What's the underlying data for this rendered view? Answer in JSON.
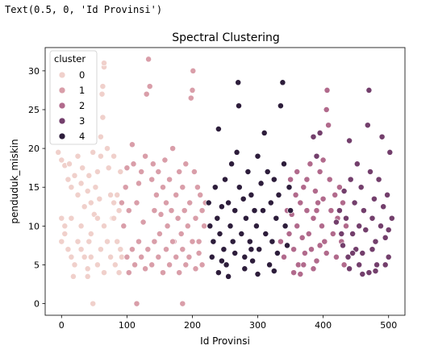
{
  "output_text": "Text(0.5, 0, 'Id Provinsi')",
  "chart_data": {
    "type": "scatter",
    "title": "Spectral Clustering",
    "xlabel": "Id Provinsi",
    "ylabel": "penduduk_miskin",
    "xlim": [
      -25,
      525
    ],
    "ylim": [
      -1.5,
      33
    ],
    "xticks": [
      0,
      100,
      200,
      300,
      400,
      500
    ],
    "yticks": [
      0,
      5,
      10,
      15,
      20,
      25,
      30
    ],
    "grid": false,
    "legend": {
      "title": "cluster",
      "position": "top-left",
      "entries": [
        {
          "name": "0",
          "color": "#f0d0cb"
        },
        {
          "name": "1",
          "color": "#d99ea9"
        },
        {
          "name": "2",
          "color": "#b16a8c"
        },
        {
          "name": "3",
          "color": "#733f6c"
        },
        {
          "name": "4",
          "color": "#2d1d3b"
        }
      ]
    },
    "series": [
      {
        "name": "0",
        "color": "#f0d0cb",
        "points": [
          [
            -5,
            19.5
          ],
          [
            0,
            18.5
          ],
          [
            5,
            17.8
          ],
          [
            10,
            16
          ],
          [
            12,
            18
          ],
          [
            15,
            15
          ],
          [
            20,
            16.5
          ],
          [
            25,
            19
          ],
          [
            25,
            14
          ],
          [
            30,
            15.5
          ],
          [
            32,
            17.5
          ],
          [
            35,
            12.5
          ],
          [
            40,
            14.5
          ],
          [
            42,
            16.5
          ],
          [
            45,
            13
          ],
          [
            48,
            19.5
          ],
          [
            50,
            11.5
          ],
          [
            52,
            15
          ],
          [
            55,
            17
          ],
          [
            58,
            13.5
          ],
          [
            60,
            21.5
          ],
          [
            60,
            19
          ],
          [
            62,
            27
          ],
          [
            63,
            28
          ],
          [
            63,
            24
          ],
          [
            65,
            30.5
          ],
          [
            65,
            31
          ],
          [
            70,
            20
          ],
          [
            72,
            17.5
          ],
          [
            75,
            14
          ],
          [
            78,
            11
          ],
          [
            80,
            13
          ],
          [
            80,
            19
          ],
          [
            85,
            14
          ],
          [
            88,
            12
          ],
          [
            90,
            17
          ],
          [
            0,
            11
          ],
          [
            5,
            10
          ],
          [
            15,
            11
          ],
          [
            30,
            10
          ],
          [
            45,
            9
          ],
          [
            55,
            11
          ],
          [
            65,
            10
          ],
          [
            80,
            11
          ],
          [
            0,
            8
          ],
          [
            5,
            9
          ],
          [
            10,
            7
          ],
          [
            15,
            6
          ],
          [
            20,
            5
          ],
          [
            25,
            8
          ],
          [
            30,
            7
          ],
          [
            35,
            6
          ],
          [
            40,
            4.5
          ],
          [
            42,
            8
          ],
          [
            45,
            6
          ],
          [
            55,
            5
          ],
          [
            60,
            7
          ],
          [
            65,
            4
          ],
          [
            70,
            8
          ],
          [
            75,
            6
          ],
          [
            82,
            5
          ],
          [
            85,
            8
          ],
          [
            88,
            4
          ],
          [
            90,
            7
          ],
          [
            92,
            6
          ],
          [
            18,
            3.5
          ],
          [
            40,
            3.5
          ],
          [
            48,
            0
          ]
        ]
      },
      {
        "name": "1",
        "color": "#d99ea9",
        "points": [
          [
            92,
            13
          ],
          [
            95,
            10
          ],
          [
            98,
            15
          ],
          [
            100,
            17.5
          ],
          [
            103,
            12
          ],
          [
            108,
            20.5
          ],
          [
            110,
            18
          ],
          [
            115,
            13
          ],
          [
            118,
            15.5
          ],
          [
            122,
            17
          ],
          [
            125,
            10.5
          ],
          [
            128,
            19
          ],
          [
            130,
            27
          ],
          [
            133,
            31.5
          ],
          [
            135,
            28
          ],
          [
            138,
            16
          ],
          [
            140,
            18
          ],
          [
            142,
            12
          ],
          [
            145,
            14
          ],
          [
            148,
            17
          ],
          [
            150,
            9
          ],
          [
            152,
            11.5
          ],
          [
            155,
            15
          ],
          [
            158,
            18.5
          ],
          [
            160,
            13
          ],
          [
            162,
            10
          ],
          [
            165,
            16
          ],
          [
            168,
            12
          ],
          [
            170,
            20
          ],
          [
            172,
            8
          ],
          [
            175,
            14
          ],
          [
            178,
            11
          ],
          [
            180,
            17
          ],
          [
            183,
            9
          ],
          [
            185,
            15
          ],
          [
            188,
            12
          ],
          [
            190,
            18
          ],
          [
            193,
            10
          ],
          [
            196,
            13
          ],
          [
            198,
            26.5
          ],
          [
            200,
            27.5
          ],
          [
            201,
            30
          ],
          [
            203,
            17
          ],
          [
            205,
            11
          ],
          [
            208,
            15
          ],
          [
            210,
            8
          ],
          [
            212,
            14
          ],
          [
            215,
            12
          ],
          [
            218,
            10
          ],
          [
            220,
            13
          ],
          [
            100,
            6
          ],
          [
            103,
            4
          ],
          [
            108,
            7
          ],
          [
            112,
            5
          ],
          [
            118,
            8
          ],
          [
            122,
            6
          ],
          [
            128,
            4.5
          ],
          [
            132,
            7
          ],
          [
            138,
            5
          ],
          [
            142,
            8
          ],
          [
            148,
            6
          ],
          [
            155,
            4
          ],
          [
            160,
            7
          ],
          [
            165,
            5
          ],
          [
            170,
            8
          ],
          [
            175,
            6
          ],
          [
            180,
            4
          ],
          [
            185,
            7
          ],
          [
            190,
            5
          ],
          [
            195,
            6
          ],
          [
            200,
            8
          ],
          [
            205,
            4.5
          ],
          [
            210,
            6.5
          ],
          [
            215,
            5
          ],
          [
            115,
            0
          ],
          [
            185,
            0
          ]
        ]
      },
      {
        "name": "2",
        "color": "#b16a8c",
        "points": [
          [
            335,
            8
          ],
          [
            340,
            6
          ],
          [
            345,
            12
          ],
          [
            348,
            9
          ],
          [
            350,
            16
          ],
          [
            352,
            11.5
          ],
          [
            355,
            7
          ],
          [
            358,
            14
          ],
          [
            360,
            10
          ],
          [
            362,
            5
          ],
          [
            365,
            13
          ],
          [
            368,
            8.5
          ],
          [
            370,
            15
          ],
          [
            372,
            6.5
          ],
          [
            375,
            12
          ],
          [
            378,
            9
          ],
          [
            380,
            18
          ],
          [
            382,
            7
          ],
          [
            385,
            11
          ],
          [
            388,
            14.5
          ],
          [
            390,
            5.5
          ],
          [
            392,
            13
          ],
          [
            395,
            17
          ],
          [
            398,
            10
          ],
          [
            400,
            18.5
          ],
          [
            402,
            8
          ],
          [
            405,
            25
          ],
          [
            406,
            27.5
          ],
          [
            408,
            23
          ],
          [
            410,
            16
          ],
          [
            412,
            12
          ],
          [
            415,
            9
          ],
          [
            418,
            14
          ],
          [
            420,
            6
          ],
          [
            422,
            11
          ],
          [
            425,
            15
          ],
          [
            428,
            8
          ],
          [
            430,
            13
          ],
          [
            432,
            5
          ],
          [
            435,
            10
          ],
          [
            355,
            4
          ],
          [
            365,
            3.8
          ],
          [
            370,
            5
          ],
          [
            385,
            4.5
          ],
          [
            395,
            7.5
          ],
          [
            360,
            17
          ],
          [
            375,
            16
          ],
          [
            390,
            12
          ],
          [
            405,
            6.5
          ],
          [
            400,
            13.5
          ]
        ]
      },
      {
        "name": "3",
        "color": "#733f6c",
        "points": [
          [
            385,
            21.5
          ],
          [
            390,
            19
          ],
          [
            395,
            22
          ],
          [
            420,
            10.5
          ],
          [
            425,
            12
          ],
          [
            428,
            9
          ],
          [
            430,
            7.5
          ],
          [
            432,
            14.5
          ],
          [
            435,
            11
          ],
          [
            438,
            6
          ],
          [
            440,
            21
          ],
          [
            442,
            16
          ],
          [
            445,
            9
          ],
          [
            448,
            13
          ],
          [
            450,
            7
          ],
          [
            452,
            18
          ],
          [
            455,
            10
          ],
          [
            458,
            15
          ],
          [
            460,
            6.5
          ],
          [
            462,
            12
          ],
          [
            465,
            9.5
          ],
          [
            468,
            23
          ],
          [
            470,
            27.5
          ],
          [
            472,
            17
          ],
          [
            475,
            11
          ],
          [
            478,
            13.5
          ],
          [
            480,
            8
          ],
          [
            482,
            5
          ],
          [
            485,
            16
          ],
          [
            488,
            10
          ],
          [
            490,
            21.5
          ],
          [
            492,
            12.5
          ],
          [
            495,
            8.5
          ],
          [
            498,
            14
          ],
          [
            500,
            6
          ],
          [
            502,
            19.5
          ],
          [
            505,
            11
          ],
          [
            470,
            4
          ],
          [
            455,
            5
          ],
          [
            440,
            4.5
          ],
          [
            460,
            3.8
          ],
          [
            480,
            4.2
          ],
          [
            495,
            5
          ],
          [
            445,
            6.5
          ],
          [
            475,
            7
          ],
          [
            500,
            9.5
          ]
        ]
      },
      {
        "name": "4",
        "color": "#2d1d3b",
        "points": [
          [
            225,
            13
          ],
          [
            227,
            10
          ],
          [
            230,
            6
          ],
          [
            232,
            8
          ],
          [
            235,
            15
          ],
          [
            238,
            11
          ],
          [
            240,
            22.5
          ],
          [
            242,
            9
          ],
          [
            245,
            12.5
          ],
          [
            248,
            7
          ],
          [
            250,
            16
          ],
          [
            252,
            5
          ],
          [
            255,
            13
          ],
          [
            258,
            10
          ],
          [
            260,
            18
          ],
          [
            262,
            8
          ],
          [
            265,
            12
          ],
          [
            268,
            19.5
          ],
          [
            270,
            28.5
          ],
          [
            271,
            25.5
          ],
          [
            272,
            15
          ],
          [
            275,
            9
          ],
          [
            278,
            13.5
          ],
          [
            280,
            6
          ],
          [
            282,
            11
          ],
          [
            285,
            17
          ],
          [
            288,
            8
          ],
          [
            290,
            14
          ],
          [
            292,
            5.5
          ],
          [
            295,
            12
          ],
          [
            298,
            10
          ],
          [
            300,
            19
          ],
          [
            302,
            7
          ],
          [
            305,
            15.5
          ],
          [
            308,
            12
          ],
          [
            310,
            22
          ],
          [
            312,
            9
          ],
          [
            315,
            17
          ],
          [
            318,
            5
          ],
          [
            320,
            13
          ],
          [
            322,
            8
          ],
          [
            325,
            16
          ],
          [
            328,
            11
          ],
          [
            330,
            6.5
          ],
          [
            332,
            14
          ],
          [
            335,
            25.5
          ],
          [
            338,
            28.5
          ],
          [
            340,
            18
          ],
          [
            342,
            10
          ],
          [
            345,
            7.5
          ],
          [
            348,
            15
          ],
          [
            350,
            12
          ],
          [
            240,
            4
          ],
          [
            255,
            3.5
          ],
          [
            280,
            4.5
          ],
          [
            300,
            3.8
          ],
          [
            325,
            4.2
          ],
          [
            245,
            5.5
          ],
          [
            265,
            6.5
          ],
          [
            290,
            7
          ]
        ]
      }
    ]
  }
}
